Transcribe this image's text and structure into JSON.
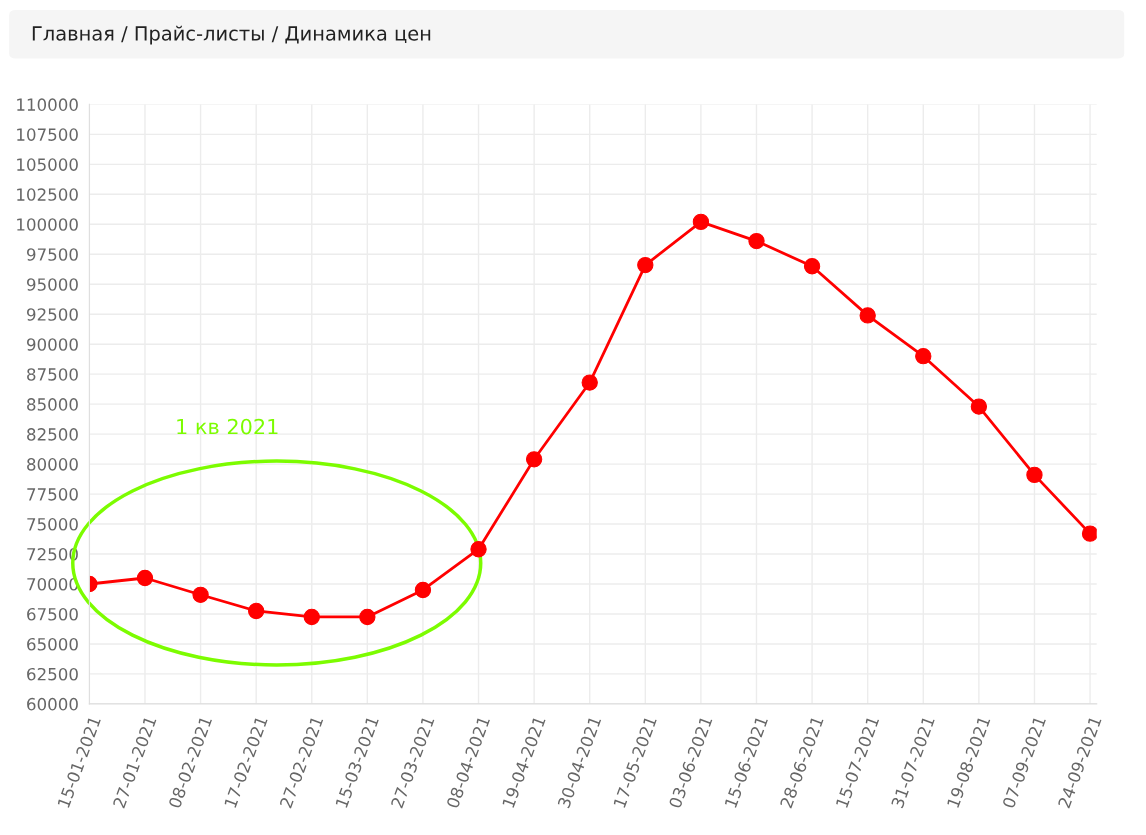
{
  "chart_data": {
    "type": "line",
    "title": "Главная / Прайс-листы / Динамика цен",
    "categories": [
      "15-01-2021",
      "27-01-2021",
      "08-02-2021",
      "17-02-2021",
      "27-02-2021",
      "15-03-2021",
      "27-03-2021",
      "08-04-2021",
      "19-04-2021",
      "30-04-2021",
      "17-05-2021",
      "03-06-2021",
      "15-06-2021",
      "28-06-2021",
      "15-07-2021",
      "31-07-2021",
      "19-08-2021",
      "07-09-2021",
      "24-09-2021"
    ],
    "series": [
      {
        "color": "#ff0000",
        "values": [
          70000,
          70500,
          69100,
          67750,
          67250,
          67250,
          69500,
          72900,
          80400,
          86800,
          96600,
          100200,
          98600,
          96500,
          92400,
          89000,
          84800,
          79100,
          74200
        ]
      }
    ],
    "ylim": [
      60000,
      110000
    ],
    "yticks": [
      60000,
      62500,
      65000,
      67500,
      70000,
      72500,
      75000,
      77500,
      80000,
      82500,
      85000,
      87500,
      90000,
      92500,
      95000,
      97500,
      100000,
      102500,
      105000,
      107500,
      110000
    ],
    "annotations": [
      "1 кв 2021"
    ],
    "grid": true,
    "marker": "circle",
    "line_style": "solid"
  }
}
